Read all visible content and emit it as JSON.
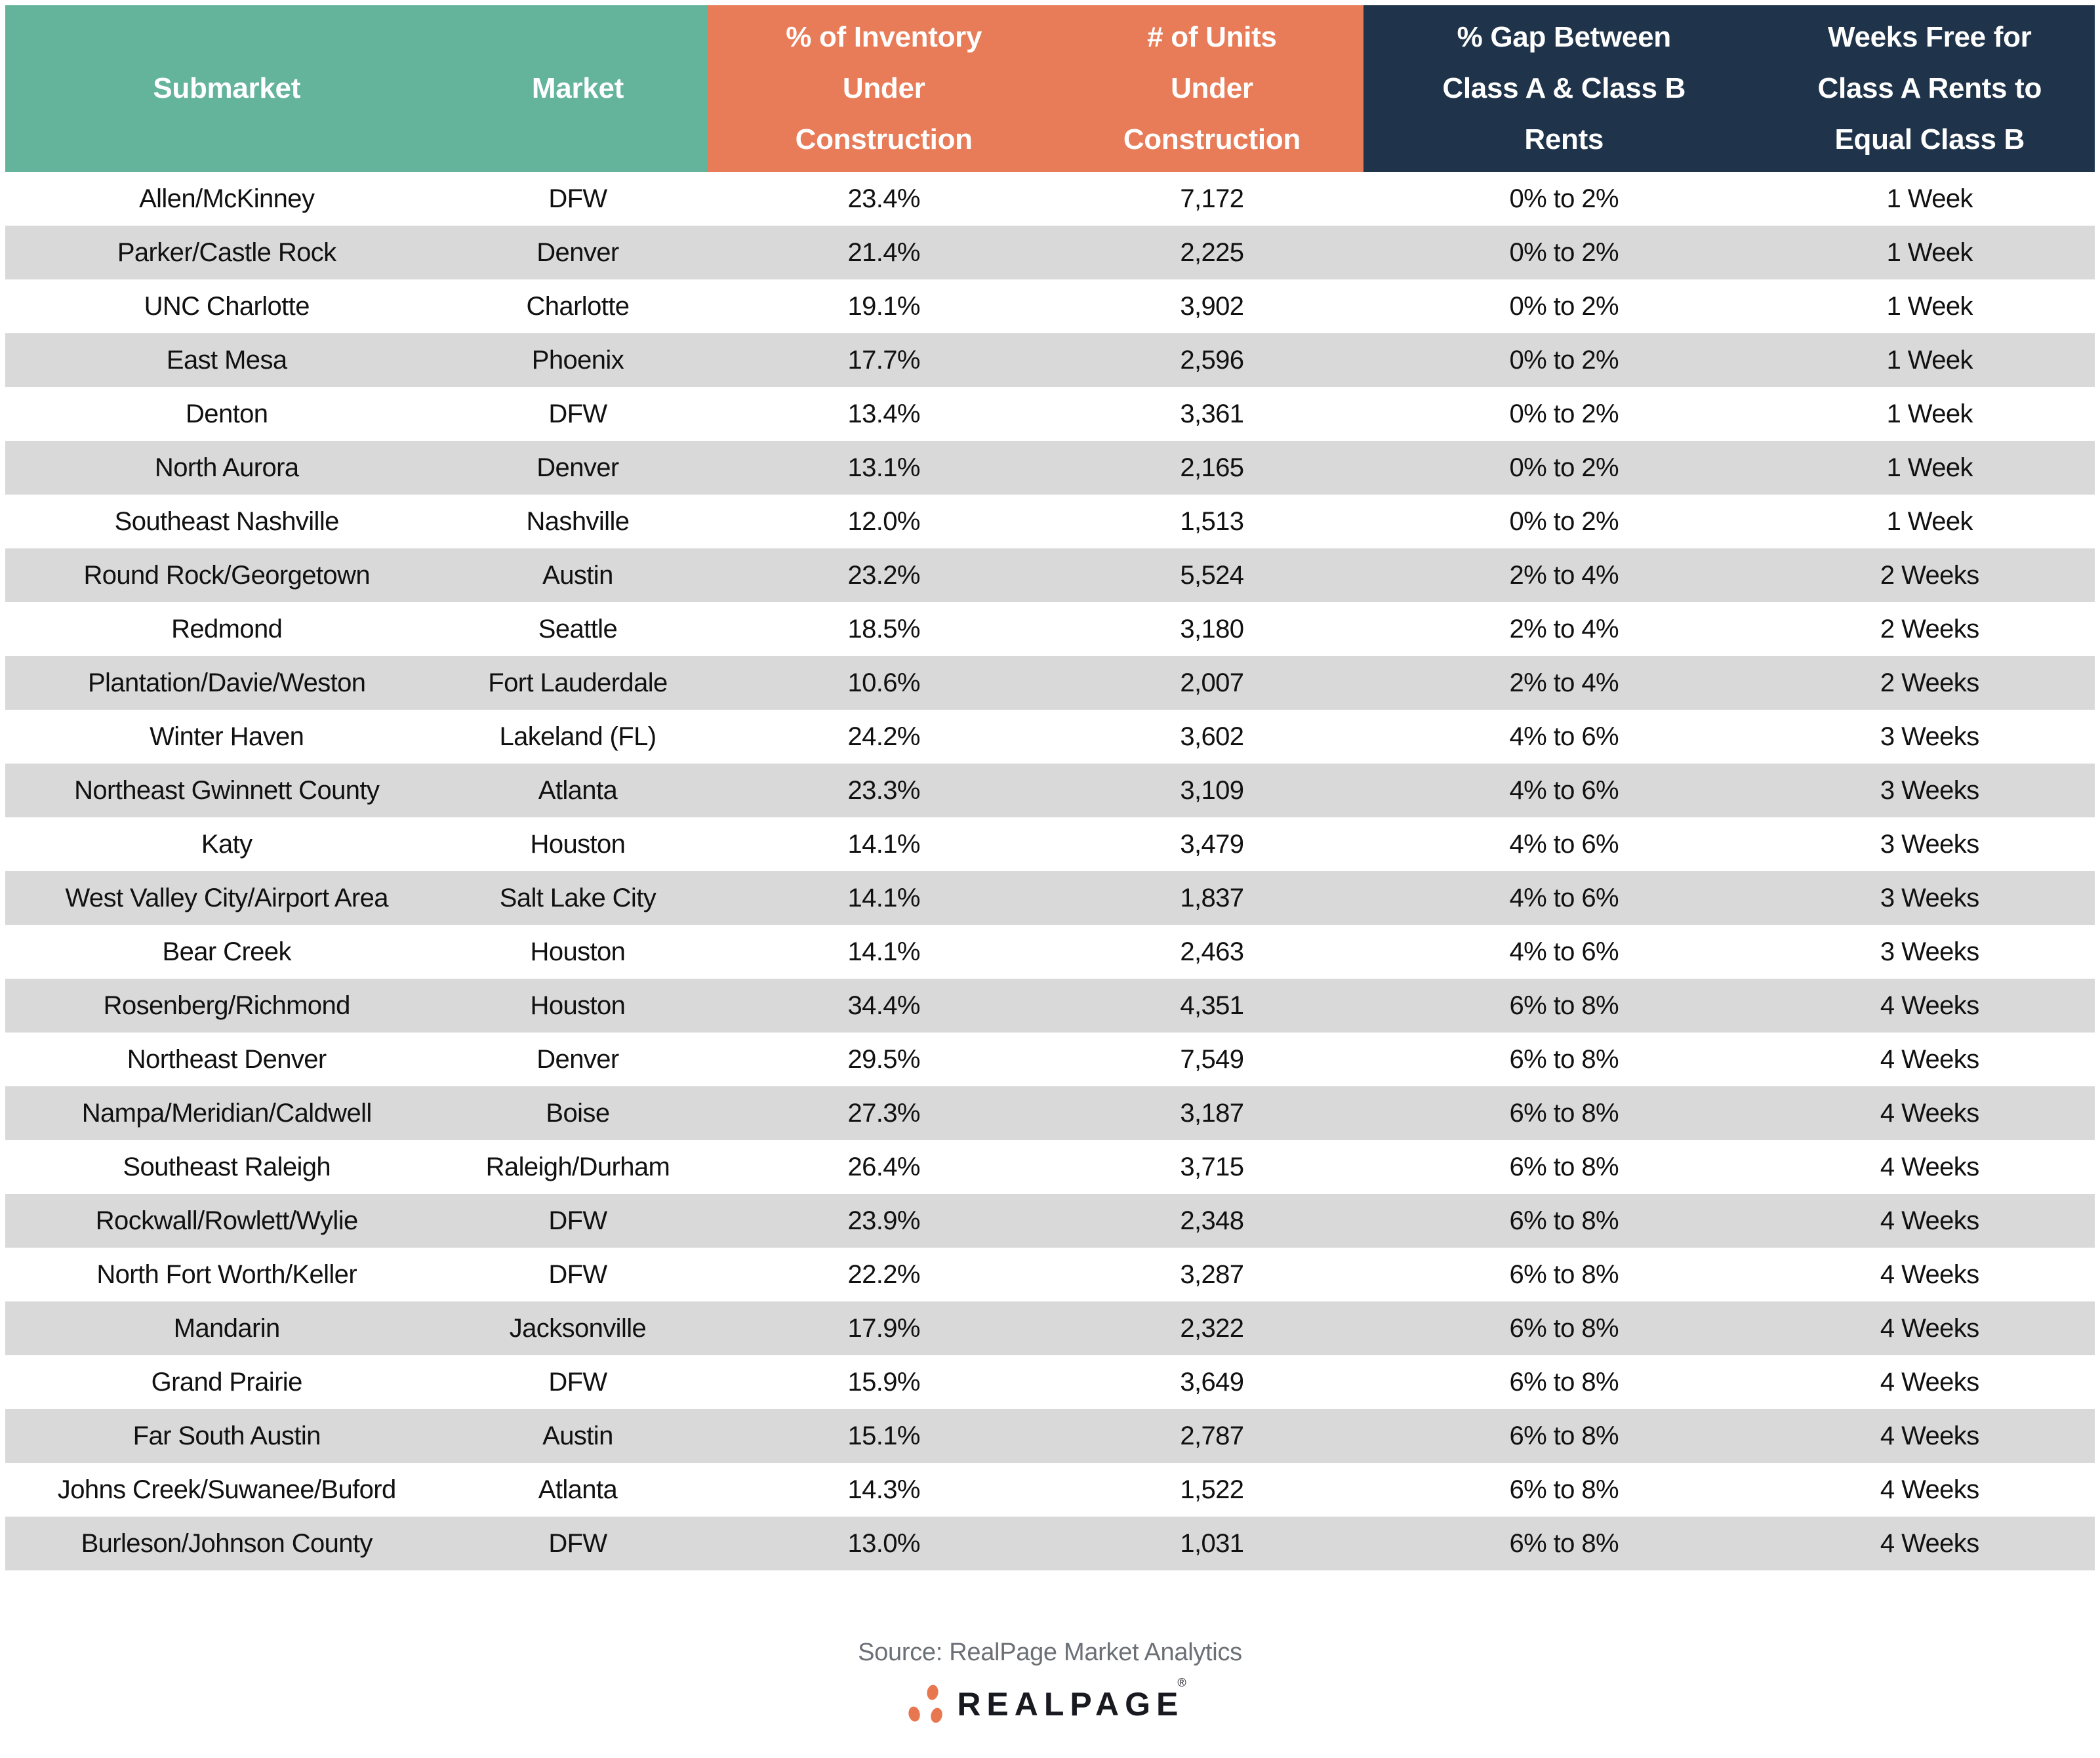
{
  "chart_data": {
    "type": "table",
    "columns": [
      "Submarket",
      "Market",
      "% of Inventory Under Construction",
      "# of Units Under Construction",
      "% Gap Between Class A & Class B Rents",
      "Weeks Free for Class A Rents to Equal Class B"
    ],
    "rows": [
      [
        "Allen/McKinney",
        "DFW",
        "23.4%",
        "7,172",
        "0% to 2%",
        "1 Week"
      ],
      [
        "Parker/Castle Rock",
        "Denver",
        "21.4%",
        "2,225",
        "0% to 2%",
        "1 Week"
      ],
      [
        "UNC Charlotte",
        "Charlotte",
        "19.1%",
        "3,902",
        "0% to 2%",
        "1 Week"
      ],
      [
        "East Mesa",
        "Phoenix",
        "17.7%",
        "2,596",
        "0% to 2%",
        "1 Week"
      ],
      [
        "Denton",
        "DFW",
        "13.4%",
        "3,361",
        "0% to 2%",
        "1 Week"
      ],
      [
        "North Aurora",
        "Denver",
        "13.1%",
        "2,165",
        "0% to 2%",
        "1 Week"
      ],
      [
        "Southeast Nashville",
        "Nashville",
        "12.0%",
        "1,513",
        "0% to 2%",
        "1 Week"
      ],
      [
        "Round Rock/Georgetown",
        "Austin",
        "23.2%",
        "5,524",
        "2% to 4%",
        "2 Weeks"
      ],
      [
        "Redmond",
        "Seattle",
        "18.5%",
        "3,180",
        "2% to 4%",
        "2 Weeks"
      ],
      [
        "Plantation/Davie/Weston",
        "Fort Lauderdale",
        "10.6%",
        "2,007",
        "2% to 4%",
        "2 Weeks"
      ],
      [
        "Winter Haven",
        "Lakeland (FL)",
        "24.2%",
        "3,602",
        "4% to 6%",
        "3 Weeks"
      ],
      [
        "Northeast Gwinnett County",
        "Atlanta",
        "23.3%",
        "3,109",
        "4% to 6%",
        "3 Weeks"
      ],
      [
        "Katy",
        "Houston",
        "14.1%",
        "3,479",
        "4% to 6%",
        "3 Weeks"
      ],
      [
        "West Valley City/Airport Area",
        "Salt Lake City",
        "14.1%",
        "1,837",
        "4% to 6%",
        "3 Weeks"
      ],
      [
        "Bear Creek",
        "Houston",
        "14.1%",
        "2,463",
        "4% to 6%",
        "3 Weeks"
      ],
      [
        "Rosenberg/Richmond",
        "Houston",
        "34.4%",
        "4,351",
        "6% to 8%",
        "4 Weeks"
      ],
      [
        "Northeast Denver",
        "Denver",
        "29.5%",
        "7,549",
        "6% to 8%",
        "4 Weeks"
      ],
      [
        "Nampa/Meridian/Caldwell",
        "Boise",
        "27.3%",
        "3,187",
        "6% to 8%",
        "4 Weeks"
      ],
      [
        "Southeast Raleigh",
        "Raleigh/Durham",
        "26.4%",
        "3,715",
        "6% to 8%",
        "4 Weeks"
      ],
      [
        "Rockwall/Rowlett/Wylie",
        "DFW",
        "23.9%",
        "2,348",
        "6% to 8%",
        "4 Weeks"
      ],
      [
        "North Fort Worth/Keller",
        "DFW",
        "22.2%",
        "3,287",
        "6% to 8%",
        "4 Weeks"
      ],
      [
        "Mandarin",
        "Jacksonville",
        "17.9%",
        "2,322",
        "6% to 8%",
        "4 Weeks"
      ],
      [
        "Grand Prairie",
        "DFW",
        "15.9%",
        "3,649",
        "6% to 8%",
        "4 Weeks"
      ],
      [
        "Far South Austin",
        "Austin",
        "15.1%",
        "2,787",
        "6% to 8%",
        "4 Weeks"
      ],
      [
        "Johns Creek/Suwanee/Buford",
        "Atlanta",
        "14.3%",
        "1,522",
        "6% to 8%",
        "4 Weeks"
      ],
      [
        "Burleson/Johnson County",
        "DFW",
        "13.0%",
        "1,031",
        "6% to 8%",
        "4 Weeks"
      ]
    ]
  },
  "header": {
    "column_lines": [
      [
        "Submarket"
      ],
      [
        "Market"
      ],
      [
        "% of Inventory",
        "Under",
        "Construction"
      ],
      [
        "# of Units",
        "Under",
        "Construction"
      ],
      [
        "% Gap Between",
        "Class A & Class B",
        "Rents"
      ],
      [
        "Weeks Free for",
        "Class A Rents to",
        "Equal Class B"
      ]
    ]
  },
  "footer": {
    "source": "Source: RealPage Market Analytics",
    "logo_text": "REALPAGE",
    "registered_mark": "®"
  },
  "colors": {
    "header_green": "#63B49B",
    "header_orange": "#E87B58",
    "header_navy": "#1F344A",
    "row_alt_gray": "#D9D9D9",
    "logo_orange": "#E8764F",
    "source_gray": "#6B7076",
    "text_dark": "#111111"
  }
}
